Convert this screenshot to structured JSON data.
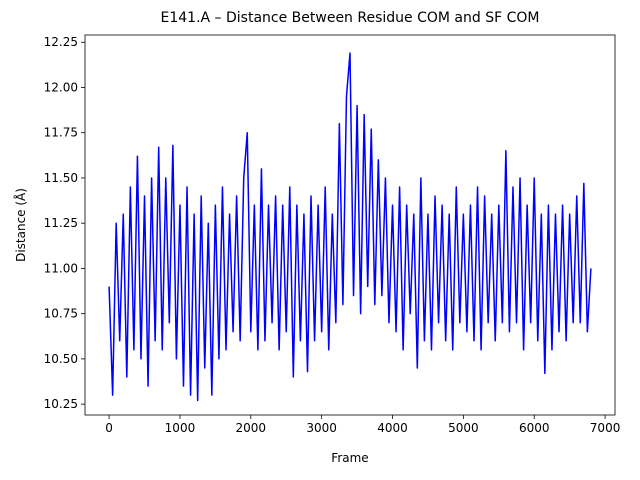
{
  "chart_data": {
    "type": "line",
    "title": "E141.A – Distance Between Residue COM and SF COM",
    "xlabel": "Frame",
    "ylabel": "Distance (Å)",
    "color": "#0000ff",
    "grid": false,
    "x": [
      0,
      50,
      100,
      150,
      200,
      250,
      300,
      350,
      400,
      450,
      500,
      550,
      600,
      650,
      700,
      750,
      800,
      850,
      900,
      950,
      1000,
      1050,
      1100,
      1150,
      1200,
      1250,
      1300,
      1350,
      1400,
      1450,
      1500,
      1550,
      1600,
      1650,
      1700,
      1750,
      1800,
      1850,
      1900,
      1950,
      2000,
      2050,
      2100,
      2150,
      2200,
      2250,
      2300,
      2350,
      2400,
      2450,
      2500,
      2550,
      2600,
      2650,
      2700,
      2750,
      2800,
      2850,
      2900,
      2950,
      3000,
      3050,
      3100,
      3150,
      3200,
      3250,
      3300,
      3350,
      3400,
      3450,
      3500,
      3550,
      3600,
      3650,
      3700,
      3750,
      3800,
      3850,
      3900,
      3950,
      4000,
      4050,
      4100,
      4150,
      4200,
      4250,
      4300,
      4350,
      4400,
      4450,
      4500,
      4550,
      4600,
      4650,
      4700,
      4750,
      4800,
      4850,
      4900,
      4950,
      5000,
      5050,
      5100,
      5150,
      5200,
      5250,
      5300,
      5350,
      5400,
      5450,
      5500,
      5550,
      5600,
      5650,
      5700,
      5750,
      5800,
      5850,
      5900,
      5950,
      6000,
      6050,
      6100,
      6150,
      6200,
      6250,
      6300,
      6350,
      6400,
      6450,
      6500,
      6550,
      6600,
      6650,
      6700,
      6750,
      6800
    ],
    "values": [
      10.9,
      10.3,
      11.25,
      10.6,
      11.3,
      10.4,
      11.45,
      10.55,
      11.62,
      10.5,
      11.4,
      10.35,
      11.5,
      10.6,
      11.67,
      10.55,
      11.5,
      10.7,
      11.68,
      10.5,
      11.35,
      10.35,
      11.45,
      10.3,
      11.3,
      10.27,
      11.4,
      10.45,
      11.25,
      10.3,
      11.35,
      10.5,
      11.45,
      10.55,
      11.3,
      10.65,
      11.4,
      10.6,
      11.5,
      11.75,
      10.65,
      11.35,
      10.55,
      11.55,
      10.6,
      11.35,
      10.7,
      11.4,
      10.55,
      11.35,
      10.65,
      11.45,
      10.4,
      11.35,
      10.6,
      11.3,
      10.43,
      11.4,
      10.6,
      11.35,
      10.65,
      11.45,
      10.55,
      11.3,
      10.7,
      11.8,
      10.8,
      11.95,
      12.19,
      10.85,
      11.9,
      10.75,
      11.85,
      10.9,
      11.77,
      10.8,
      11.6,
      10.85,
      11.5,
      10.7,
      11.35,
      10.65,
      11.45,
      10.55,
      11.35,
      10.75,
      11.3,
      10.45,
      11.5,
      10.6,
      11.3,
      10.55,
      11.4,
      10.7,
      11.35,
      10.6,
      11.3,
      10.55,
      11.45,
      10.7,
      11.3,
      10.65,
      11.35,
      10.6,
      11.45,
      10.55,
      11.4,
      10.7,
      11.3,
      10.6,
      11.35,
      10.7,
      11.65,
      10.65,
      11.45,
      10.7,
      11.5,
      10.55,
      11.35,
      10.7,
      11.5,
      10.6,
      11.3,
      10.42,
      11.35,
      10.55,
      11.3,
      10.65,
      11.35,
      10.6,
      11.3,
      10.7,
      11.4,
      10.7,
      11.47,
      10.65,
      11.0
    ],
    "xlim": [
      -340,
      7140
    ],
    "ylim": [
      10.19,
      12.29
    ],
    "xticks": [
      0,
      1000,
      2000,
      3000,
      4000,
      5000,
      6000,
      7000
    ],
    "yticks": [
      10.25,
      {
        "value": 10.5,
        "label": "10.50"
      },
      10.75,
      {
        "value": 11,
        "label": "11.00"
      },
      11.25,
      {
        "value": 11.5,
        "label": "11.50"
      },
      11.75,
      {
        "value": 12,
        "label": "12.00"
      },
      12.25
    ]
  }
}
